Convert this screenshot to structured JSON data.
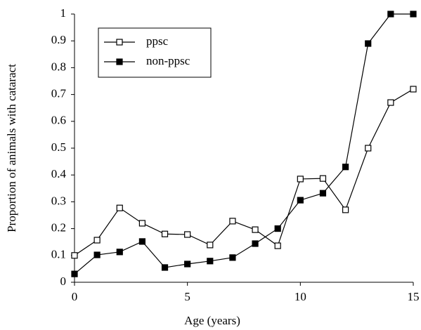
{
  "chart_data": {
    "type": "line",
    "xlabel": "Age (years)",
    "ylabel": "Proportion of animals with cataract",
    "x": [
      0,
      1,
      2,
      3,
      4,
      5,
      6,
      7,
      8,
      9,
      10,
      11,
      12,
      13,
      14,
      15
    ],
    "series": [
      {
        "name": "ppsc",
        "color": "#000000",
        "marker": "hollow-square",
        "values": [
          0.1,
          0.157,
          0.277,
          0.22,
          0.18,
          0.178,
          0.139,
          0.228,
          0.196,
          0.136,
          0.385,
          0.387,
          0.27,
          0.5,
          0.67,
          0.72
        ]
      },
      {
        "name": "non-ppsc",
        "color": "#000000",
        "marker": "filled-square",
        "values": [
          0.031,
          0.102,
          0.113,
          0.152,
          0.055,
          0.068,
          0.079,
          0.092,
          0.144,
          0.2,
          0.306,
          0.332,
          0.43,
          0.89,
          1,
          1
        ]
      }
    ],
    "xlim": [
      0,
      15
    ],
    "xticks": [
      0,
      5,
      10,
      15
    ],
    "ylim": [
      0,
      1
    ],
    "yticks": [
      0,
      0.1,
      0.2,
      0.3,
      0.4,
      0.5,
      0.6,
      0.7,
      0.8,
      0.9,
      1
    ],
    "grid": false,
    "legend": "upper left"
  }
}
